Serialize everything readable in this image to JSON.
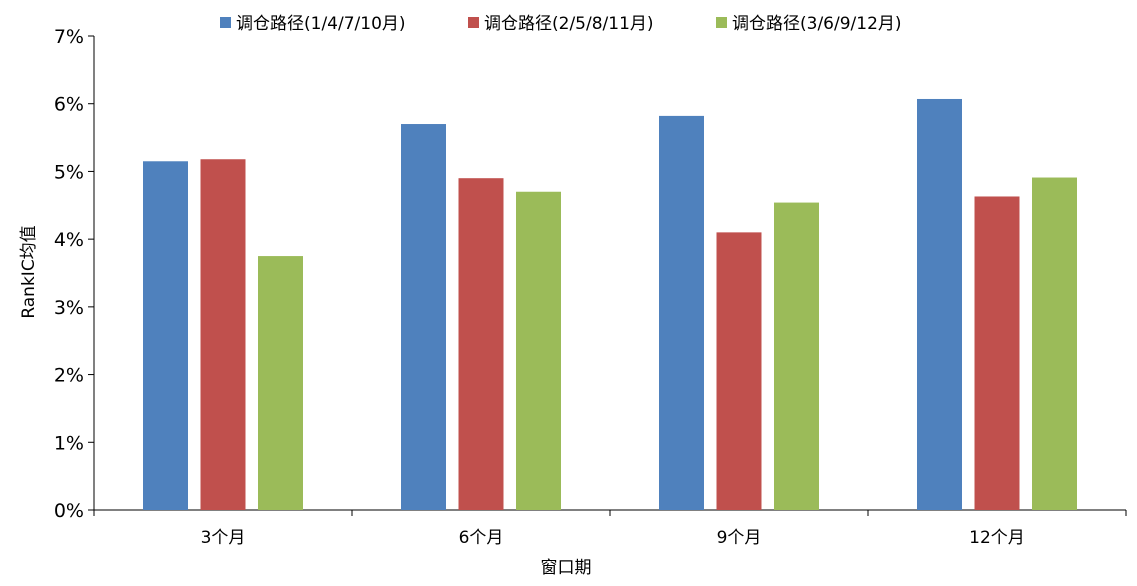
{
  "chart_data": {
    "type": "bar",
    "title": "",
    "xlabel": "窗口期",
    "ylabel": "RankIC均值",
    "categories": [
      "3个月",
      "6个月",
      "9个月",
      "12个月"
    ],
    "series": [
      {
        "name": "调仓路径(1/4/7/10月)",
        "color": "#4F81BD",
        "values": [
          5.15,
          5.7,
          5.82,
          6.07
        ]
      },
      {
        "name": "调仓路径(2/5/8/11月)",
        "color": "#C0504D",
        "values": [
          5.18,
          4.9,
          4.1,
          4.63
        ]
      },
      {
        "name": "调仓路径(3/6/9/12月)",
        "color": "#9BBB59",
        "values": [
          3.75,
          4.7,
          4.54,
          4.91
        ]
      }
    ],
    "ylim": [
      0,
      7
    ],
    "yticks": [
      0,
      1,
      2,
      3,
      4,
      5,
      6,
      7
    ],
    "ytick_suffix": "%",
    "grid": false,
    "legend_position": "top"
  }
}
